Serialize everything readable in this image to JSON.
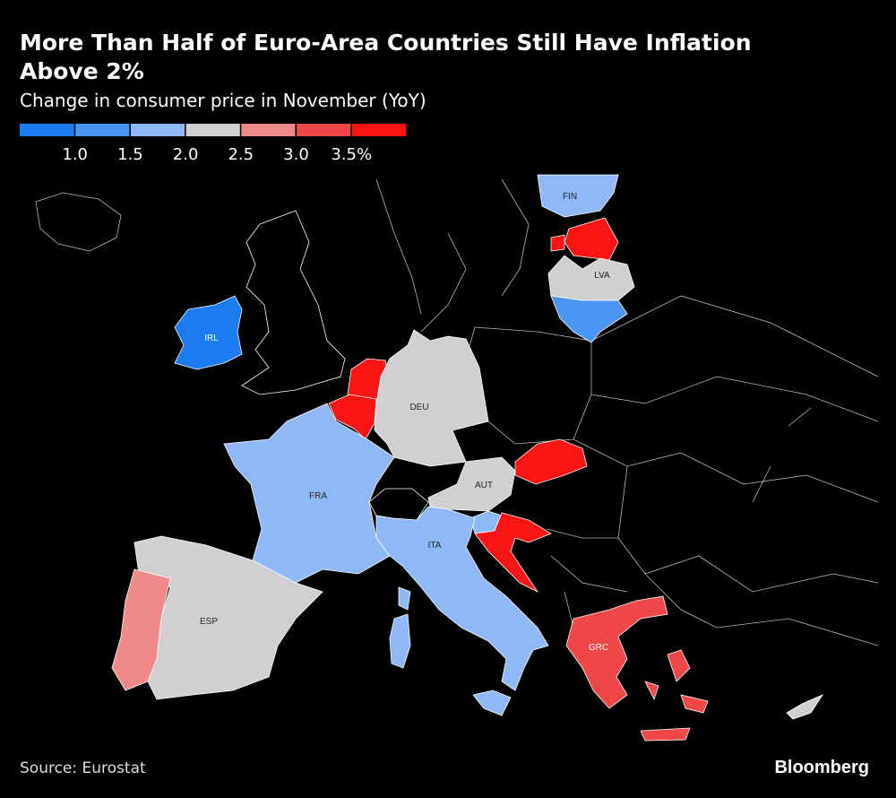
{
  "header": {
    "title": "More Than Half of Euro-Area Countries Still Have Inflation Above 2%",
    "subtitle": "Change in consumer price in November (YoY)"
  },
  "legend": {
    "colors": [
      "#1a7cf0",
      "#4a95f2",
      "#8fb8f6",
      "#d0d0d0",
      "#f08a8a",
      "#f04848",
      "#fa1414"
    ],
    "ticks": [
      {
        "value": 1.0,
        "label": "1.0"
      },
      {
        "value": 1.5,
        "label": "1.5"
      },
      {
        "value": 2.0,
        "label": "2.0"
      },
      {
        "value": 2.5,
        "label": "2.5"
      },
      {
        "value": 3.0,
        "label": "3.0"
      },
      {
        "value": 3.5,
        "label": "3.5%"
      }
    ]
  },
  "map": {
    "labels": [
      "FIN",
      "LVA",
      "IRL",
      "DEU",
      "FRA",
      "AUT",
      "ITA",
      "ESP",
      "GRC"
    ]
  },
  "footer": {
    "source": "Source: Eurostat",
    "brand": "Bloomberg"
  }
}
